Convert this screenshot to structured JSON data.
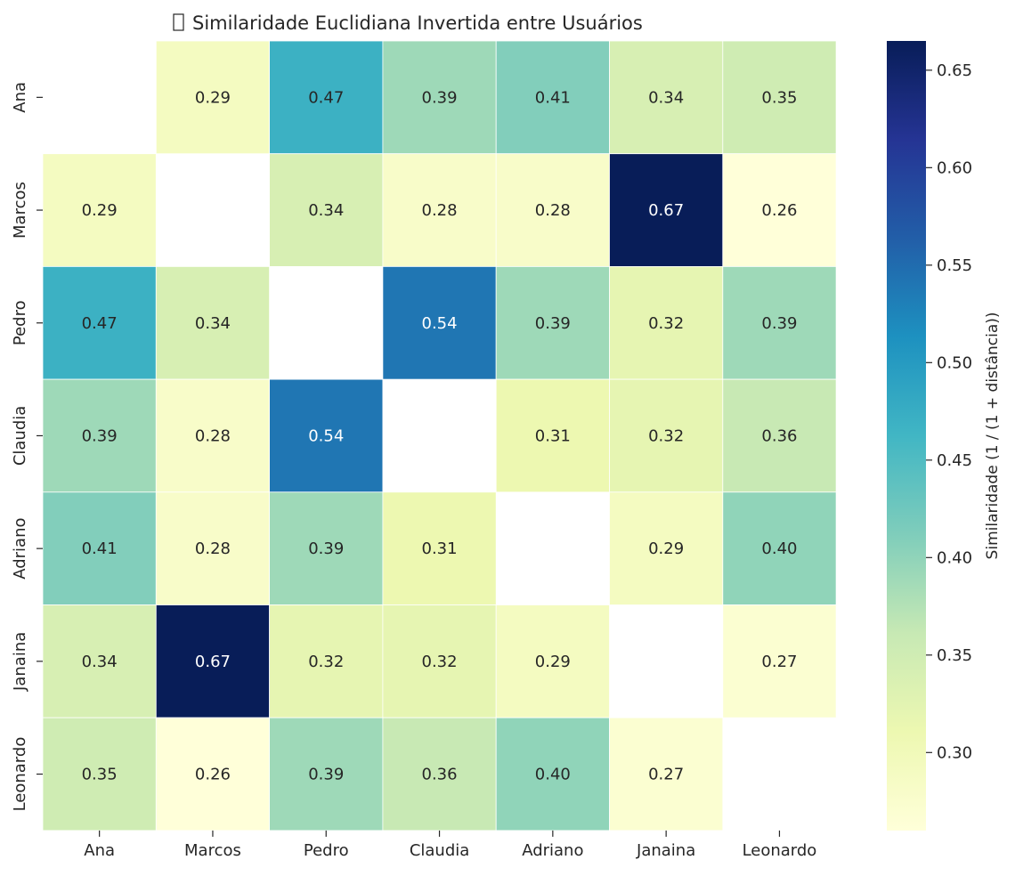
{
  "chart_data": {
    "type": "heatmap",
    "title": "Similaridade Euclidiana Invertida entre Usuários",
    "title_prefix_glyph": "missing-glyph-box",
    "rows": [
      "Ana",
      "Marcos",
      "Pedro",
      "Claudia",
      "Adriano",
      "Janaina",
      "Leonardo"
    ],
    "columns": [
      "Ana",
      "Marcos",
      "Pedro",
      "Claudia",
      "Adriano",
      "Janaina",
      "Leonardo"
    ],
    "values": [
      [
        null,
        0.29,
        0.47,
        0.39,
        0.41,
        0.34,
        0.35
      ],
      [
        0.29,
        null,
        0.34,
        0.28,
        0.28,
        0.67,
        0.26
      ],
      [
        0.47,
        0.34,
        null,
        0.54,
        0.39,
        0.32,
        0.39
      ],
      [
        0.39,
        0.28,
        0.54,
        null,
        0.31,
        0.32,
        0.36
      ],
      [
        0.41,
        0.28,
        0.39,
        0.31,
        null,
        0.29,
        0.4
      ],
      [
        0.34,
        0.67,
        0.32,
        0.32,
        0.29,
        null,
        0.27
      ],
      [
        0.35,
        0.26,
        0.39,
        0.36,
        0.4,
        0.27,
        null
      ]
    ],
    "annotation_format": "0.00",
    "colormap": "YlGnBu",
    "colormap_stops": [
      "#ffffd9",
      "#edf8b1",
      "#c7e9b4",
      "#7fcdbb",
      "#41b6c4",
      "#1d91c0",
      "#225ea8",
      "#253494",
      "#081d58"
    ],
    "vmin": 0.26,
    "vmax": 0.665,
    "colorbar": {
      "label": "Similaridade (1 / (1 + distância))",
      "ticks": [
        0.3,
        0.35,
        0.4,
        0.45,
        0.5,
        0.55,
        0.6,
        0.65
      ],
      "tick_labels": [
        "0.30",
        "0.35",
        "0.40",
        "0.45",
        "0.50",
        "0.55",
        "0.60",
        "0.65"
      ],
      "position": "right"
    },
    "cell_border_color": "#ffffff",
    "grid": false
  }
}
